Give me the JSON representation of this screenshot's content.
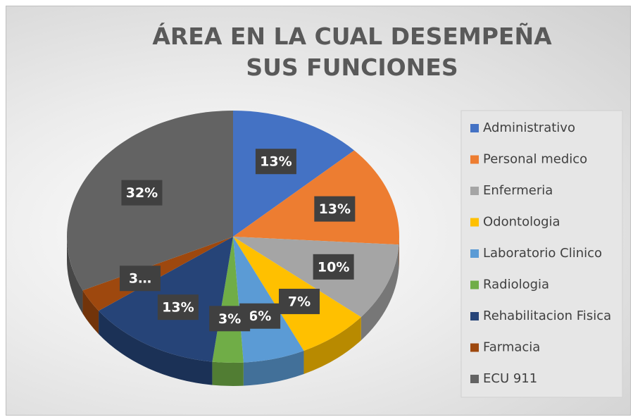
{
  "chart_data": {
    "type": "pie",
    "title": "ÁREA EN LA CUAL DESEMPEÑA SUS FUNCIONES",
    "categories": [
      "Administrativo",
      "Personal medico",
      "Enfermeria",
      "Odontologia",
      "Laboratorio Clinico",
      "Radiologia",
      "Rehabilitacion Fisica",
      "Farmacia",
      "ECU 911"
    ],
    "values": [
      13,
      13,
      10,
      7,
      6,
      3,
      13,
      3,
      32
    ],
    "value_labels": [
      "13%",
      "13%",
      "10%",
      "7%",
      "6%",
      "3%",
      "13%",
      "3…",
      "32%"
    ],
    "colors": [
      "#4472c4",
      "#ed7d31",
      "#a5a5a5",
      "#ffc000",
      "#5b9bd5",
      "#70ad47",
      "#264478",
      "#9e480e",
      "#636363"
    ],
    "legend": "right"
  }
}
